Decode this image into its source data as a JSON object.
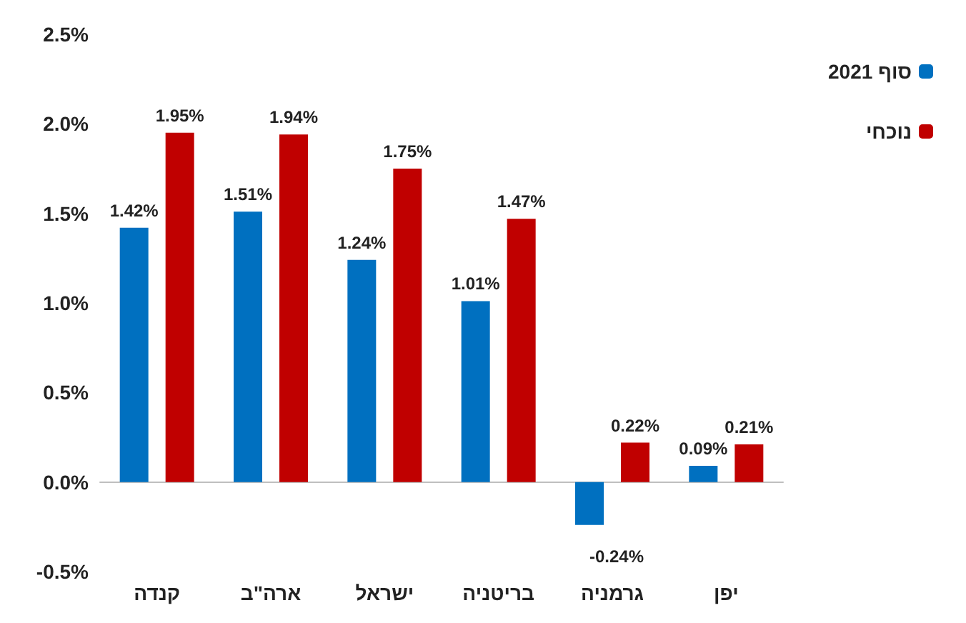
{
  "chart_data": {
    "type": "bar",
    "categories": [
      "קנדה",
      "ארה\"ב",
      "ישראל",
      "בריטניה",
      "גרמניה",
      "יפן"
    ],
    "series": [
      {
        "name": "סוף 2021",
        "color": "#0070c0",
        "values": [
          1.42,
          1.51,
          1.24,
          1.01,
          -0.24,
          0.09
        ],
        "value_labels": [
          "1.42%",
          "1.51%",
          "1.24%",
          "1.01%",
          "-0.24%",
          "0.09%"
        ]
      },
      {
        "name": "נוכחי",
        "color": "#c00000",
        "values": [
          1.95,
          1.94,
          1.75,
          1.47,
          0.22,
          0.21
        ],
        "value_labels": [
          "1.95%",
          "1.94%",
          "1.75%",
          "1.47%",
          "0.22%",
          "0.21%"
        ]
      }
    ],
    "ylim": [
      -0.5,
      2.5
    ],
    "yticks": [
      {
        "value": -0.5,
        "label": "-0.5%"
      },
      {
        "value": 0,
        "label": "0.0%"
      },
      {
        "value": 0.5,
        "label": "0.5%"
      },
      {
        "value": 1,
        "label": "1.0%"
      },
      {
        "value": 1.5,
        "label": "1.5%"
      },
      {
        "value": 2,
        "label": "2.0%"
      },
      {
        "value": 2.5,
        "label": "2.5%"
      }
    ],
    "legend": "top right"
  }
}
